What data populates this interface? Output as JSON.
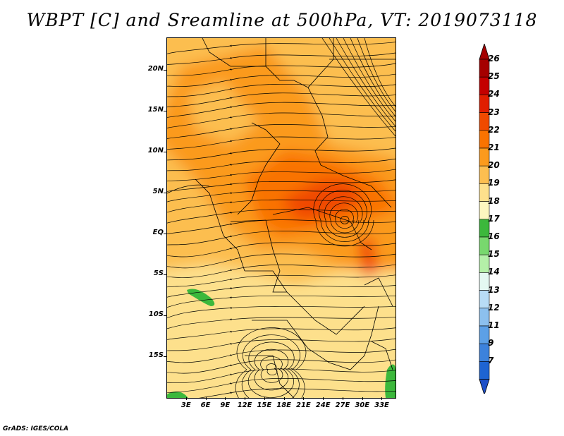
{
  "title": "WBPT [C] and Sreamline at 500hPa, VT: 2019073118",
  "footer": "GrADS: IGES/COLA",
  "map": {
    "lon_range": [
      0,
      35
    ],
    "lat_range": [
      -20,
      24
    ],
    "lat_ticks": [
      {
        "lat": 20,
        "label": "20N"
      },
      {
        "lat": 15,
        "label": "15N"
      },
      {
        "lat": 10,
        "label": "10N"
      },
      {
        "lat": 5,
        "label": "5N"
      },
      {
        "lat": 0,
        "label": "EQ"
      },
      {
        "lat": -5,
        "label": "5S"
      },
      {
        "lat": -10,
        "label": "10S"
      },
      {
        "lat": -15,
        "label": "15S"
      }
    ],
    "lon_ticks": [
      {
        "lon": 3,
        "label": "3E"
      },
      {
        "lon": 6,
        "label": "6E"
      },
      {
        "lon": 9,
        "label": "9E"
      },
      {
        "lon": 12,
        "label": "12E"
      },
      {
        "lon": 15,
        "label": "15E"
      },
      {
        "lon": 18,
        "label": "18E"
      },
      {
        "lon": 21,
        "label": "21E"
      },
      {
        "lon": 24,
        "label": "24E"
      },
      {
        "lon": 27,
        "label": "27E"
      },
      {
        "lon": 30,
        "label": "30E"
      },
      {
        "lon": 33,
        "label": "33E"
      }
    ]
  },
  "colorbar": {
    "levels": [
      {
        "label": "26",
        "color": "#a50000"
      },
      {
        "label": "25",
        "color": "#c40000"
      },
      {
        "label": "24",
        "color": "#e01e00"
      },
      {
        "label": "23",
        "color": "#f04a00"
      },
      {
        "label": "22",
        "color": "#f97300"
      },
      {
        "label": "21",
        "color": "#fb9a1c"
      },
      {
        "label": "20",
        "color": "#fcbe50"
      },
      {
        "label": "19",
        "color": "#fde08c"
      },
      {
        "label": "18",
        "color": "#fdf7c0"
      },
      {
        "label": "17",
        "color": "#3cb83c"
      },
      {
        "label": "16",
        "color": "#78d86e"
      },
      {
        "label": "15",
        "color": "#b4f0a8"
      },
      {
        "label": "14",
        "color": "#e4f8f2"
      },
      {
        "label": "13",
        "color": "#b8dcf6"
      },
      {
        "label": "12",
        "color": "#8cc0ee"
      },
      {
        "label": "11",
        "color": "#5ca0e6"
      },
      {
        "label": "9",
        "color": "#3c82dc"
      },
      {
        "label": "7",
        "color": "#1e64d2"
      }
    ],
    "bottom_color": "#1e50c8"
  }
}
